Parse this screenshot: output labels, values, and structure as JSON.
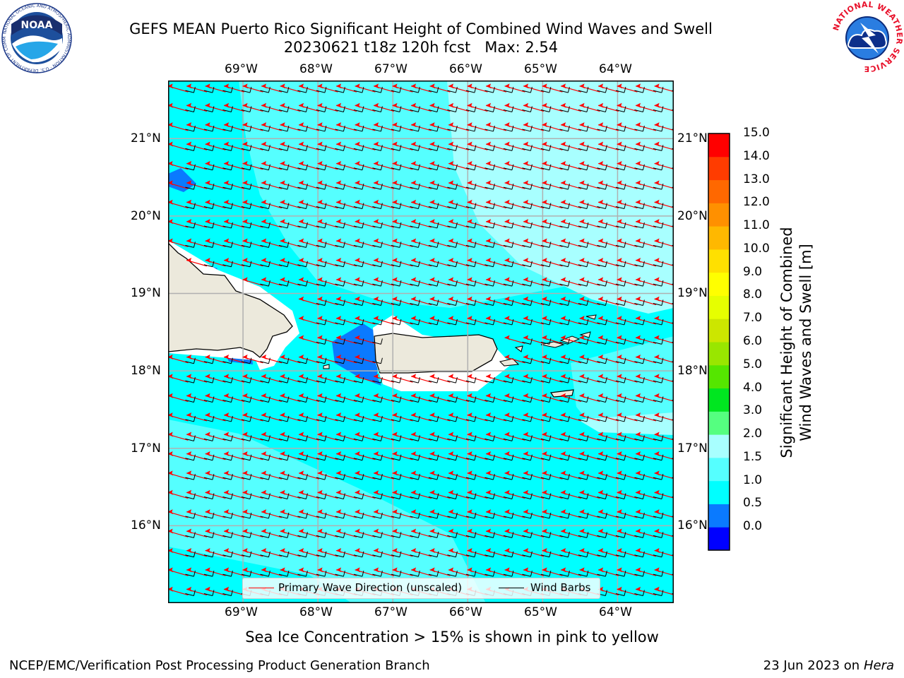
{
  "header": {
    "title_line1": "GEFS MEAN Puerto Rico Significant Height of Combined Wind Waves and Swell",
    "title_line2": "20230621 t18z 120h fcst   Max: 2.54"
  },
  "logos": {
    "noaa": {
      "text": "NOAA",
      "ring_text": "NATIONAL OCEANIC AND ATMOSPHERIC ADMINISTRATION · U.S. DEPARTMENT OF COMMERCE"
    },
    "nws": {
      "ring_text": "NATIONAL WEATHER SERVICE"
    }
  },
  "map": {
    "lon_labels": [
      "69°W",
      "68°W",
      "67°W",
      "66°W",
      "65°W",
      "64°W"
    ],
    "lat_labels": [
      "21°N",
      "20°N",
      "19°N",
      "18°N",
      "17°N",
      "16°N"
    ],
    "lon_values": [
      -69,
      -68,
      -67,
      -66,
      -65,
      -64
    ],
    "lat_values": [
      21,
      20,
      19,
      18,
      17,
      16
    ],
    "extent": {
      "lon_min": -70,
      "lon_max": -63.25,
      "lat_min": 15,
      "lat_max": 21.75
    },
    "colors": {
      "land": "#ece9dc",
      "gridline": "#b0b0b0",
      "wave_arrow": "#ff0000",
      "wind_barb": "#000000"
    }
  },
  "legend": {
    "wave_direction_label": "Primary Wave Direction (unscaled)",
    "wind_barbs_label": "Wind Barbs"
  },
  "colorbar": {
    "title_line1": "Significant Height of Combined",
    "title_line2": "Wind Waves and Swell [m]",
    "levels": [
      "15.0",
      "14.0",
      "13.0",
      "12.0",
      "11.0",
      "10.0",
      "9.0",
      "8.0",
      "7.0",
      "6.0",
      "5.0",
      "4.0",
      "3.0",
      "2.0",
      "1.5",
      "1.0",
      "0.5",
      "0.0"
    ],
    "colors_bottom_to_top": [
      "#0000ff",
      "#0a7aff",
      "#00ffff",
      "#55ffff",
      "#a8ffff",
      "#55ff80",
      "#00e620",
      "#55e600",
      "#99e600",
      "#cce600",
      "#e6ff00",
      "#ffff00",
      "#ffe000",
      "#ffb800",
      "#ff9000",
      "#ff6800",
      "#ff3c00",
      "#ff0000"
    ]
  },
  "chart_data": {
    "type": "heatmap",
    "title": "GEFS MEAN Puerto Rico Significant Height of Combined Wind Waves and Swell",
    "subtitle": "20230621 t18z 120h fcst   Max: 2.54",
    "variable": "Significant Height of Combined Wind Waves and Swell [m]",
    "max_value": 2.54,
    "lon_range": [
      -70,
      -63.25
    ],
    "lat_range": [
      15,
      21.75
    ],
    "levels": [
      0.0,
      0.5,
      1.0,
      1.5,
      2.0,
      3.0,
      4.0,
      5.0,
      6.0,
      7.0,
      8.0,
      9.0,
      10.0,
      11.0,
      12.0,
      13.0,
      14.0,
      15.0
    ],
    "wave_direction": "from east-southeast",
    "wind_direction": "from east"
  },
  "notes": {
    "sea_ice": "Sea Ice Concentration > 15% is shown in pink to yellow"
  },
  "footer": {
    "producer": "NCEP/EMC/Verification Post Processing Product Generation Branch",
    "date": "23 Jun 2023 on",
    "machine": "Hera"
  }
}
